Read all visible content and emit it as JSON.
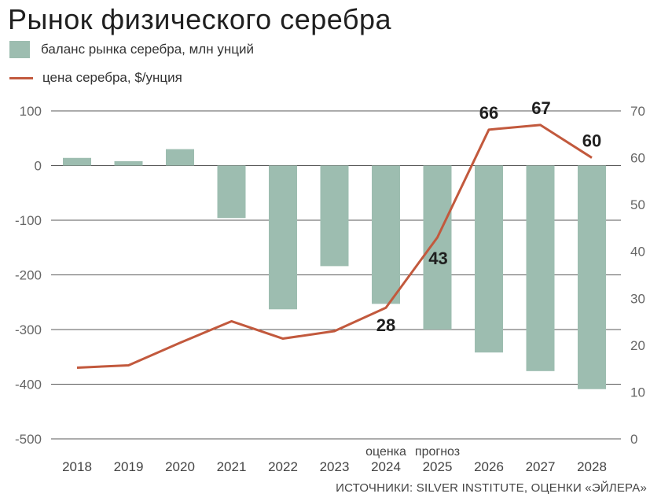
{
  "chart_data": {
    "type": "bar+line",
    "title": "Рынок физического серебра",
    "categories": [
      "2018",
      "2019",
      "2020",
      "2021",
      "2022",
      "2023",
      "2024",
      "2025",
      "2026",
      "2027",
      "2028"
    ],
    "category_notes": [
      "",
      "",
      "",
      "",
      "",
      "",
      "оценка",
      "прогноз",
      "",
      "",
      ""
    ],
    "series": [
      {
        "name": "баланс рынка серебра, млн унций",
        "type": "bar",
        "axis": "left",
        "color": "#9dbdb0",
        "values": [
          14,
          8,
          30,
          -96,
          -263,
          -184,
          -253,
          -300,
          -342,
          -376,
          -409
        ]
      },
      {
        "name": "цена серебра, $/унция",
        "type": "line",
        "axis": "right",
        "color": "#c2593d",
        "values": [
          15.2,
          15.7,
          20.5,
          25.1,
          21.4,
          23.0,
          28,
          43,
          66,
          67,
          60
        ],
        "data_labels": [
          "",
          "",
          "",
          "",
          "",
          "",
          "28",
          "43",
          "66",
          "67",
          "60"
        ]
      }
    ],
    "y_left": {
      "min": -500,
      "max": 100,
      "ticks": [
        "100",
        "0",
        "-100",
        "-200",
        "-300",
        "-400",
        "-500"
      ]
    },
    "y_right": {
      "min": 0,
      "max": 70,
      "ticks": [
        "70",
        "60",
        "50",
        "40",
        "30",
        "20",
        "10",
        "0"
      ]
    },
    "grid": true,
    "legend_position": "top-left",
    "source": "ИСТОЧНИКИ: SILVER INSTITUTE, ОЦЕНКИ «ЭЙЛЕРА»"
  }
}
